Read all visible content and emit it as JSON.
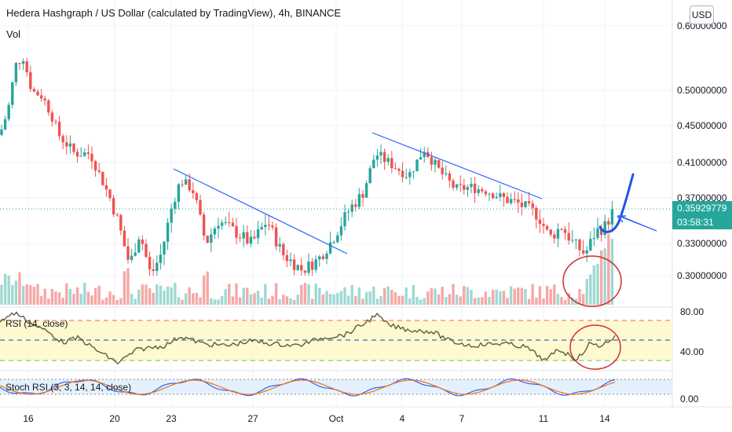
{
  "header": {
    "title": "Hedera Hashgraph / US Dollar (calculated by TradingView), 4h, BINANCE",
    "volume_label": "Vol",
    "currency_button": "USD"
  },
  "price_axis": {
    "labels": [
      "0.60000000",
      "0.50000000",
      "0.45000000",
      "0.41000000",
      "0.37000000",
      "0.33000000",
      "0.30000000"
    ],
    "current_price": "0.35929779",
    "countdown": "03:58:31",
    "tag_color": "#26a69a"
  },
  "rsi_panel": {
    "label": "RSI (14, close)",
    "axis_labels": [
      "80.00",
      "40.00"
    ],
    "band_color": "#fff7c0"
  },
  "stoch_panel": {
    "label": "Stoch RSI (3, 3, 14, 14, close)",
    "axis_labels": [
      "0.00"
    ],
    "band_color": "#e0f0ff"
  },
  "time_axis": {
    "labels": [
      "16",
      "20",
      "23",
      "27",
      "Oct",
      "4",
      "7",
      "11",
      "14"
    ]
  },
  "colors": {
    "up": "#26a69a",
    "down": "#ef5350",
    "trendline": "#2962ff",
    "annotation": "#1e53e5",
    "highlight_circle": "#d32f2f"
  },
  "chart_data": {
    "type": "candlestick",
    "symbol": "Hedera Hashgraph / US Dollar",
    "interval": "4h",
    "exchange": "BINANCE",
    "x": [
      "16",
      "20",
      "23",
      "27",
      "Oct",
      "4",
      "7",
      "11",
      "14"
    ],
    "close_trend": [
      0.46,
      0.52,
      0.48,
      0.44,
      0.36,
      0.31,
      0.39,
      0.37,
      0.34,
      0.33,
      0.32,
      0.3,
      0.34,
      0.41,
      0.4,
      0.42,
      0.39,
      0.38,
      0.37,
      0.36,
      0.35,
      0.33,
      0.34,
      0.3593
    ],
    "current_price": 0.35929779,
    "annotations": [
      "descending trendline Sep 22 - Oct 1",
      "descending trendline Oct 3 - Oct 15",
      "projected bounce arrow",
      "volume spike circle",
      "RSI circle"
    ]
  }
}
